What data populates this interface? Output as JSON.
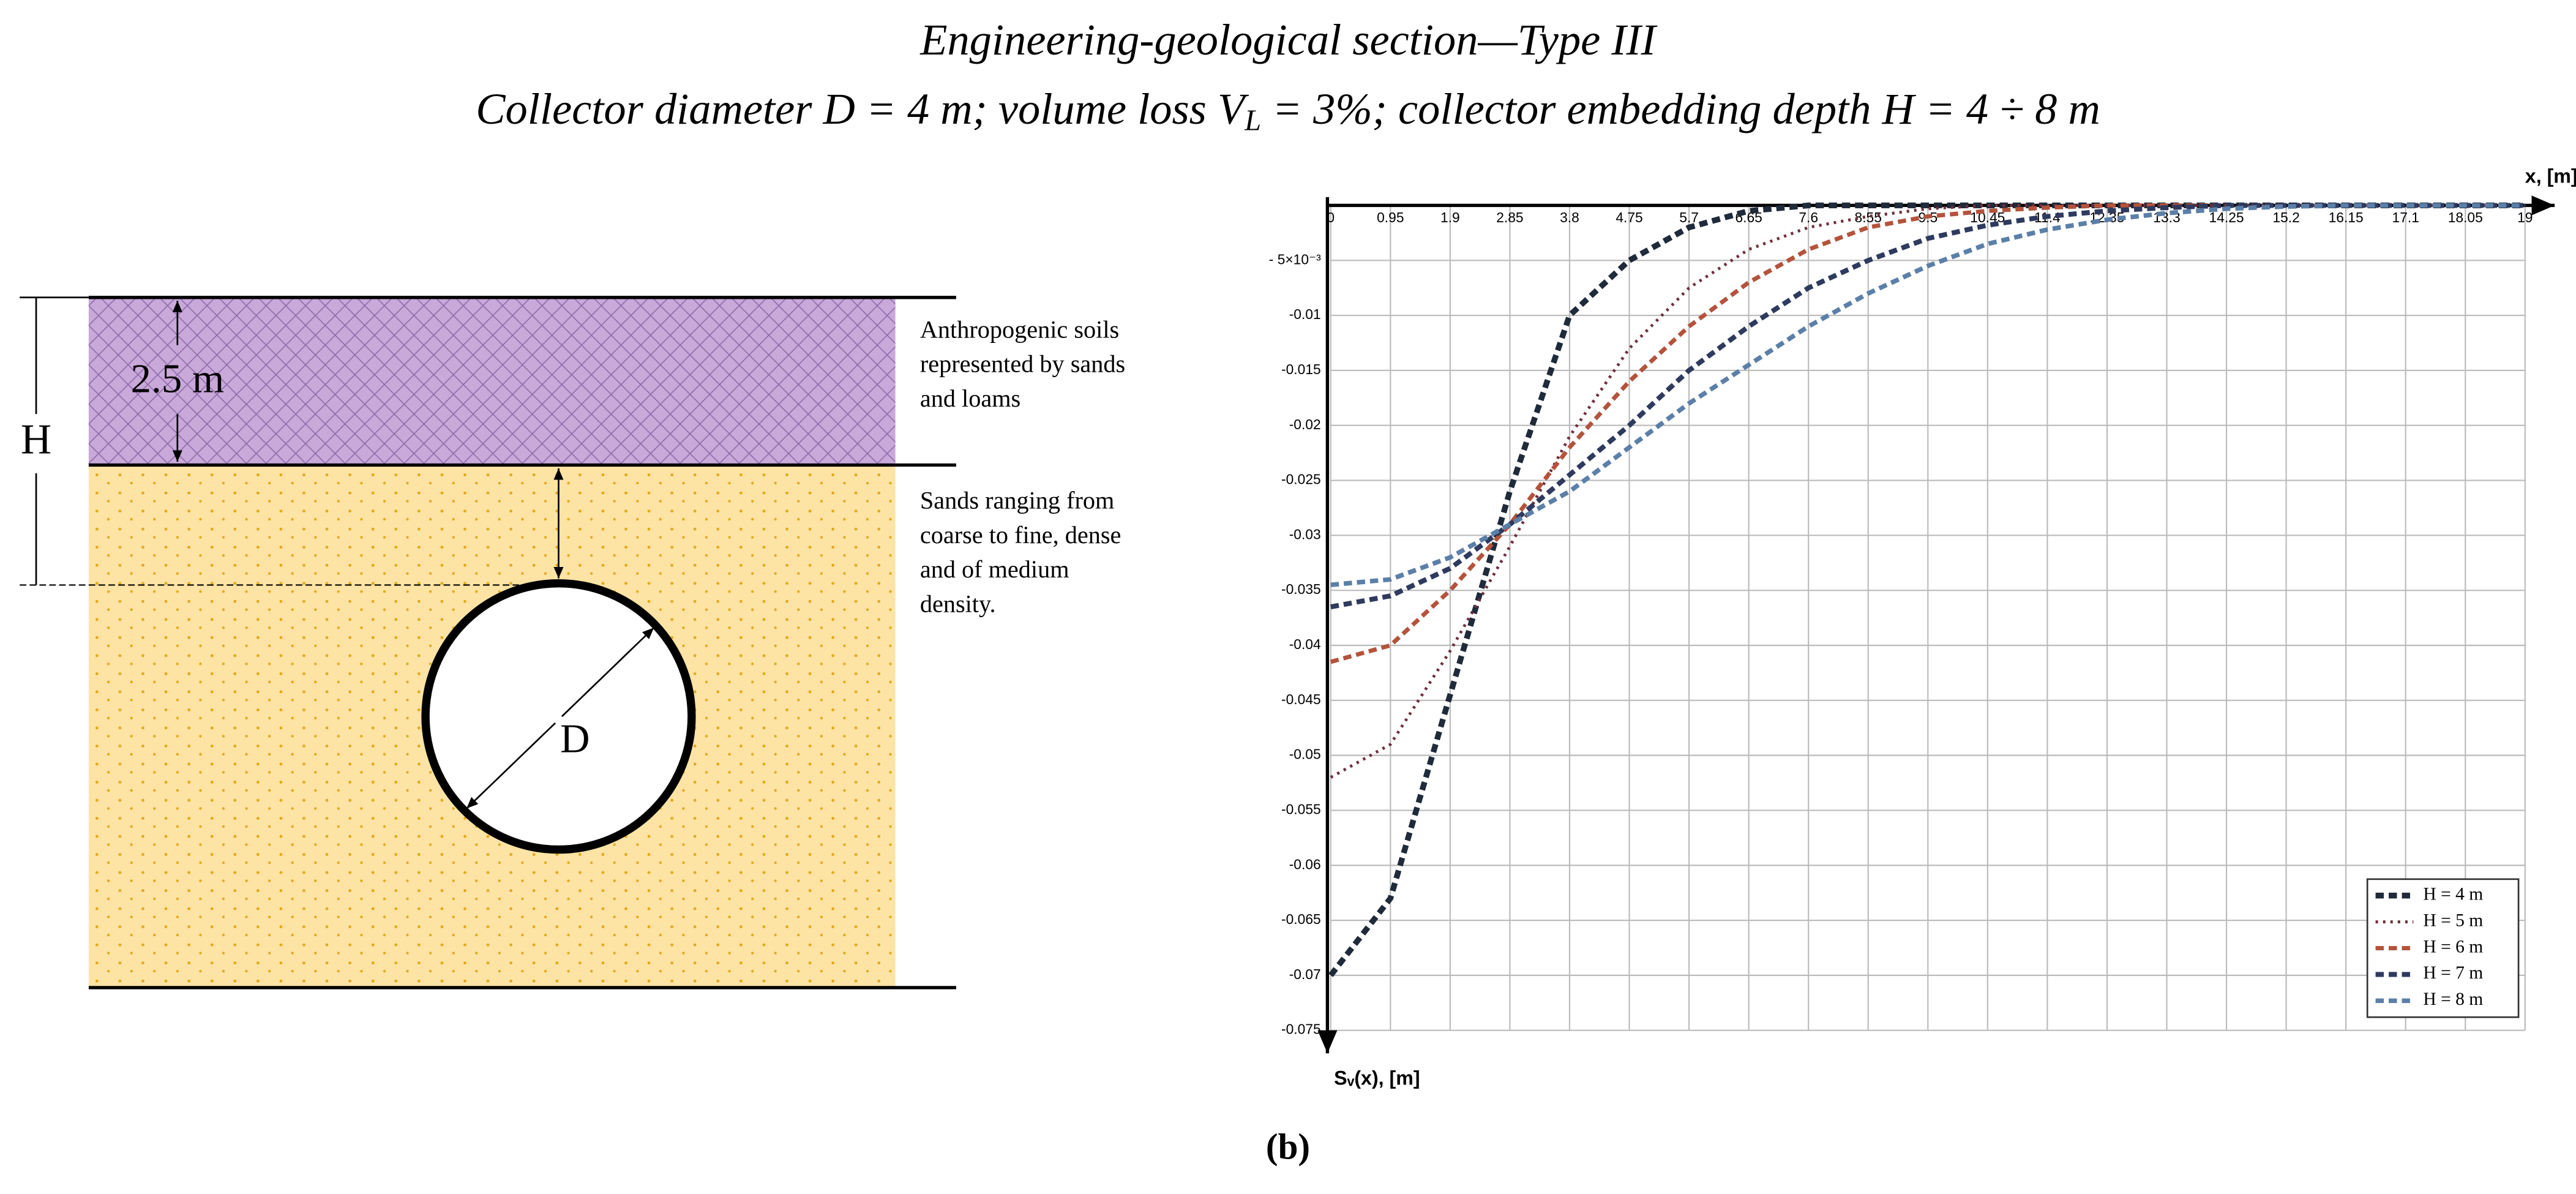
{
  "title": "Engineering-geological section—Type III",
  "subtitle": {
    "before": "Collector diameter D = 4 m; volume loss V",
    "sub": "L",
    "after": " = 3%; collector embedding depth H = 4 ÷ 8 m"
  },
  "diagram": {
    "top_layer_thickness": "2.5 m",
    "depth_label": "H",
    "diameter_label": "D",
    "top_layer_description": [
      "Anthropogenic soils",
      "represented by sands",
      "and loams"
    ],
    "bottom_layer_description": [
      "Sands ranging from",
      "coarse to fine, dense",
      "and of medium",
      "density."
    ]
  },
  "chart_data": {
    "type": "line",
    "x_label": "x, [m]",
    "y_label": "Sᵥ(x), [m]",
    "x": [
      0,
      0.95,
      1.9,
      2.85,
      3.8,
      4.75,
      5.7,
      6.65,
      7.6,
      8.55,
      9.5,
      10.45,
      11.4,
      12.35,
      13.3,
      14.25,
      15.2,
      16.15,
      17.1,
      18.05,
      19
    ],
    "xlim": [
      0,
      19
    ],
    "xticks": [
      0,
      0.95,
      1.9,
      2.85,
      3.8,
      4.75,
      5.7,
      6.65,
      7.6,
      8.55,
      9.5,
      10.45,
      11.4,
      12.35,
      13.3,
      14.25,
      15.2,
      16.15,
      17.1,
      18.05,
      19
    ],
    "ylim": [
      0,
      -0.075
    ],
    "yticks": [
      {
        "value": -0.005,
        "label": "- 5×10⁻³"
      },
      -0.01,
      -0.015,
      -0.02,
      -0.025,
      -0.03,
      -0.035,
      -0.04,
      -0.045,
      -0.05,
      -0.055,
      -0.06,
      -0.065,
      -0.07,
      -0.075
    ],
    "grid": true,
    "legend": "lower right",
    "series": [
      {
        "name": "H = 4 m",
        "color": "#1f2a3a",
        "values": [
          -0.07,
          -0.063,
          -0.0445,
          -0.026,
          -0.01,
          -0.005,
          -0.002,
          -0.0005,
          0,
          0,
          0,
          0,
          0,
          0,
          0,
          0,
          0,
          0,
          0,
          0,
          0
        ]
      },
      {
        "name": "H = 5 m",
        "color": "#6e2f3c",
        "values": [
          -0.052,
          -0.049,
          -0.0405,
          -0.031,
          -0.021,
          -0.013,
          -0.0075,
          -0.004,
          -0.002,
          -0.001,
          -0.0003,
          0,
          0,
          0,
          0,
          0,
          0,
          0,
          0,
          0,
          0
        ]
      },
      {
        "name": "H = 6 m",
        "color": "#b4533c",
        "values": [
          -0.0415,
          -0.04,
          -0.035,
          -0.029,
          -0.022,
          -0.016,
          -0.011,
          -0.007,
          -0.004,
          -0.002,
          -0.001,
          -0.0005,
          -0.0002,
          0,
          0,
          0,
          0,
          0,
          0,
          0,
          0
        ]
      },
      {
        "name": "H = 7 m",
        "color": "#2e3a5e",
        "values": [
          -0.0365,
          -0.0355,
          -0.033,
          -0.029,
          -0.0245,
          -0.02,
          -0.015,
          -0.011,
          -0.0075,
          -0.005,
          -0.003,
          -0.0018,
          -0.001,
          -0.0005,
          -0.0002,
          0,
          0,
          0,
          0,
          0,
          0
        ]
      },
      {
        "name": "H = 8 m",
        "color": "#5b7fa8",
        "values": [
          -0.0345,
          -0.034,
          -0.032,
          -0.029,
          -0.026,
          -0.022,
          -0.018,
          -0.0145,
          -0.011,
          -0.008,
          -0.0055,
          -0.0035,
          -0.0022,
          -0.0013,
          -0.0007,
          -0.0003,
          -0.0001,
          0,
          0,
          0,
          0
        ]
      }
    ]
  },
  "caption": "(b)"
}
